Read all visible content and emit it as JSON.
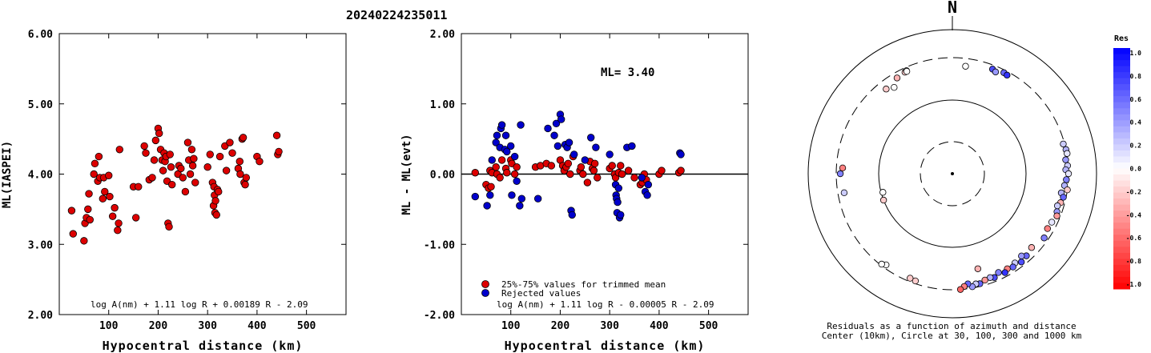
{
  "title": "20240224235011",
  "chart_data": [
    {
      "type": "scatter",
      "ylabel": "ML(IASPEI)",
      "xlabel": "Hypocentral distance (km)",
      "xlim": [
        0,
        580
      ],
      "ylim": [
        2.0,
        6.0
      ],
      "xticks": [
        "100",
        "200",
        "300",
        "400",
        "500"
      ],
      "yticks": [
        "2.00",
        "3.00",
        "4.00",
        "5.00",
        "6.00"
      ],
      "formula": "log A(nm) + 1.11 log R + 0.00189 R - 2.09",
      "marker_color": "#dd0000",
      "points": [
        [
          25,
          3.48
        ],
        [
          28,
          3.15
        ],
        [
          50,
          3.05
        ],
        [
          52,
          3.3
        ],
        [
          55,
          3.38
        ],
        [
          58,
          3.5
        ],
        [
          60,
          3.72
        ],
        [
          62,
          3.35
        ],
        [
          70,
          4.0
        ],
        [
          72,
          4.15
        ],
        [
          78,
          3.9
        ],
        [
          80,
          4.25
        ],
        [
          82,
          3.95
        ],
        [
          88,
          3.65
        ],
        [
          90,
          3.95
        ],
        [
          92,
          3.75
        ],
        [
          100,
          3.98
        ],
        [
          102,
          3.68
        ],
        [
          108,
          3.4
        ],
        [
          112,
          3.52
        ],
        [
          118,
          3.2
        ],
        [
          120,
          3.3
        ],
        [
          122,
          4.35
        ],
        [
          150,
          3.82
        ],
        [
          155,
          3.38
        ],
        [
          160,
          3.82
        ],
        [
          172,
          4.4
        ],
        [
          175,
          4.3
        ],
        [
          182,
          3.92
        ],
        [
          188,
          3.95
        ],
        [
          192,
          4.2
        ],
        [
          195,
          4.48
        ],
        [
          200,
          4.65
        ],
        [
          202,
          4.58
        ],
        [
          205,
          4.35
        ],
        [
          208,
          4.2
        ],
        [
          210,
          4.05
        ],
        [
          212,
          4.3
        ],
        [
          214,
          4.18
        ],
        [
          216,
          4.25
        ],
        [
          218,
          3.9
        ],
        [
          220,
          3.3
        ],
        [
          222,
          3.25
        ],
        [
          224,
          4.28
        ],
        [
          226,
          4.1
        ],
        [
          228,
          3.85
        ],
        [
          240,
          4.0
        ],
        [
          242,
          4.12
        ],
        [
          246,
          4.08
        ],
        [
          250,
          3.95
        ],
        [
          255,
          3.75
        ],
        [
          260,
          4.45
        ],
        [
          262,
          4.2
        ],
        [
          265,
          4.0
        ],
        [
          268,
          4.35
        ],
        [
          270,
          4.12
        ],
        [
          272,
          4.22
        ],
        [
          275,
          3.88
        ],
        [
          300,
          4.1
        ],
        [
          305,
          4.28
        ],
        [
          310,
          3.88
        ],
        [
          312,
          3.55
        ],
        [
          313,
          3.82
        ],
        [
          314,
          3.7
        ],
        [
          315,
          3.45
        ],
        [
          316,
          3.62
        ],
        [
          318,
          3.42
        ],
        [
          320,
          3.78
        ],
        [
          322,
          3.75
        ],
        [
          325,
          4.25
        ],
        [
          335,
          4.4
        ],
        [
          338,
          4.05
        ],
        [
          345,
          4.45
        ],
        [
          350,
          4.3
        ],
        [
          362,
          4.08
        ],
        [
          365,
          4.18
        ],
        [
          366,
          4.0
        ],
        [
          370,
          4.5
        ],
        [
          372,
          4.52
        ],
        [
          374,
          3.88
        ],
        [
          376,
          3.85
        ],
        [
          378,
          3.95
        ],
        [
          400,
          4.25
        ],
        [
          405,
          4.18
        ],
        [
          440,
          4.55
        ],
        [
          442,
          4.28
        ],
        [
          444,
          4.32
        ]
      ]
    },
    {
      "type": "scatter",
      "ylabel": "ML - ML(evt)",
      "xlabel": "Hypocentral distance (km)",
      "xlim": [
        0,
        580
      ],
      "ylim": [
        -2.0,
        2.0
      ],
      "xticks": [
        "100",
        "200",
        "300",
        "400",
        "500"
      ],
      "yticks": [
        "-2.00",
        "-1.00",
        "0.00",
        "1.00",
        "2.00"
      ],
      "annotation": "ML= 3.40",
      "formula": "log A(nm) + 1.11 log R - 0.00005 R - 2.09",
      "legend": [
        {
          "label": "25%-75% values for trimmed mean",
          "color": "#dd0000"
        },
        {
          "label": "Rejected values",
          "color": "#0000cc"
        }
      ],
      "accepted": [
        [
          28,
          0.02
        ],
        [
          50,
          -0.15
        ],
        [
          55,
          -0.2
        ],
        [
          58,
          0.05
        ],
        [
          60,
          -0.18
        ],
        [
          62,
          0.02
        ],
        [
          70,
          0.1
        ],
        [
          72,
          0.0
        ],
        [
          78,
          -0.05
        ],
        [
          82,
          0.2
        ],
        [
          90,
          0.08
        ],
        [
          92,
          0.02
        ],
        [
          100,
          0.2
        ],
        [
          102,
          0.15
        ],
        [
          108,
          0.0
        ],
        [
          112,
          0.1
        ],
        [
          150,
          0.1
        ],
        [
          160,
          0.12
        ],
        [
          172,
          0.15
        ],
        [
          182,
          0.12
        ],
        [
          200,
          0.2
        ],
        [
          205,
          0.12
        ],
        [
          208,
          0.05
        ],
        [
          212,
          0.1
        ],
        [
          216,
          0.15
        ],
        [
          220,
          0.0
        ],
        [
          226,
          0.25
        ],
        [
          240,
          0.05
        ],
        [
          242,
          0.1
        ],
        [
          246,
          0.0
        ],
        [
          255,
          -0.12
        ],
        [
          260,
          0.18
        ],
        [
          265,
          0.08
        ],
        [
          268,
          0.05
        ],
        [
          270,
          0.15
        ],
        [
          275,
          -0.05
        ],
        [
          300,
          0.08
        ],
        [
          305,
          0.12
        ],
        [
          310,
          0.0
        ],
        [
          312,
          -0.05
        ],
        [
          318,
          0.02
        ],
        [
          322,
          0.12
        ],
        [
          325,
          0.0
        ],
        [
          338,
          0.05
        ],
        [
          350,
          -0.05
        ],
        [
          362,
          -0.15
        ],
        [
          366,
          -0.12
        ],
        [
          370,
          0.0
        ],
        [
          374,
          -0.08
        ],
        [
          400,
          0.0
        ],
        [
          405,
          0.05
        ],
        [
          440,
          0.02
        ],
        [
          444,
          0.05
        ]
      ],
      "rejected": [
        [
          28,
          -0.32
        ],
        [
          52,
          -0.45
        ],
        [
          58,
          -0.3
        ],
        [
          62,
          0.2
        ],
        [
          70,
          0.45
        ],
        [
          72,
          0.55
        ],
        [
          78,
          0.38
        ],
        [
          80,
          0.65
        ],
        [
          82,
          0.7
        ],
        [
          88,
          0.35
        ],
        [
          90,
          0.55
        ],
        [
          92,
          0.32
        ],
        [
          100,
          0.4
        ],
        [
          102,
          -0.3
        ],
        [
          108,
          0.25
        ],
        [
          112,
          -0.1
        ],
        [
          118,
          -0.45
        ],
        [
          120,
          0.7
        ],
        [
          122,
          -0.35
        ],
        [
          155,
          -0.35
        ],
        [
          175,
          0.65
        ],
        [
          188,
          0.55
        ],
        [
          192,
          0.72
        ],
        [
          195,
          0.4
        ],
        [
          200,
          0.85
        ],
        [
          202,
          0.78
        ],
        [
          210,
          0.42
        ],
        [
          214,
          0.38
        ],
        [
          218,
          0.45
        ],
        [
          222,
          -0.52
        ],
        [
          224,
          -0.58
        ],
        [
          228,
          0.28
        ],
        [
          250,
          0.2
        ],
        [
          262,
          0.52
        ],
        [
          272,
          0.38
        ],
        [
          300,
          0.28
        ],
        [
          312,
          -0.15
        ],
        [
          313,
          -0.3
        ],
        [
          314,
          -0.35
        ],
        [
          315,
          -0.55
        ],
        [
          316,
          -0.4
        ],
        [
          318,
          -0.2
        ],
        [
          320,
          -0.62
        ],
        [
          322,
          -0.58
        ],
        [
          335,
          0.38
        ],
        [
          345,
          0.4
        ],
        [
          365,
          -0.05
        ],
        [
          372,
          -0.25
        ],
        [
          376,
          -0.3
        ],
        [
          378,
          -0.15
        ],
        [
          442,
          0.3
        ],
        [
          444,
          0.28
        ]
      ]
    },
    {
      "type": "scatter",
      "subtype": "polar",
      "north_label": "N",
      "caption_line1": "Residuals as a function of azimuth and distance",
      "caption_line2": "Center (10km), Circle at 30, 100, 300 and 1000 km",
      "colorbar_title": "Res",
      "colorbar_ticks": [
        "1.0",
        "0.8",
        "0.6",
        "0.4",
        "0.2",
        "0.0",
        "-0.2",
        "-0.4",
        "-0.6",
        "-0.8",
        "-1.0"
      ],
      "circle_distances_km": [
        30,
        100,
        300,
        1000
      ],
      "points": [
        {
          "az": 7,
          "dist": 245,
          "res": 0.0
        },
        {
          "az": 21,
          "dist": 270,
          "res": 0.7
        },
        {
          "az": 23,
          "dist": 260,
          "res": 0.4
        },
        {
          "az": 27,
          "dist": 280,
          "res": 0.6
        },
        {
          "az": 29,
          "dist": 275,
          "res": 0.8
        },
        {
          "az": 78,
          "dist": 300,
          "res": 0.3
        },
        {
          "az": 75,
          "dist": 290,
          "res": 0.2
        },
        {
          "az": 80,
          "dist": 305,
          "res": 0.1
        },
        {
          "az": 83,
          "dist": 285,
          "res": 0.4
        },
        {
          "az": 86,
          "dist": 295,
          "res": 0.2
        },
        {
          "az": 88,
          "dist": 280,
          "res": 0.3
        },
        {
          "az": 90,
          "dist": 300,
          "res": 0.1
        },
        {
          "az": 93,
          "dist": 285,
          "res": 0.5
        },
        {
          "az": 96,
          "dist": 275,
          "res": 0.3
        },
        {
          "az": 98,
          "dist": 300,
          "res": -0.2
        },
        {
          "az": 100,
          "dist": 260,
          "res": 0.3
        },
        {
          "az": 102,
          "dist": 280,
          "res": 0.6
        },
        {
          "az": 105,
          "dist": 270,
          "res": -0.3
        },
        {
          "az": 107,
          "dist": 255,
          "res": 0.2
        },
        {
          "az": 110,
          "dist": 265,
          "res": 0.4
        },
        {
          "az": 112,
          "dist": 275,
          "res": -0.4
        },
        {
          "az": 116,
          "dist": 260,
          "res": 0.1
        },
        {
          "az": 120,
          "dist": 255,
          "res": -0.5
        },
        {
          "az": 125,
          "dist": 270,
          "res": 0.5
        },
        {
          "az": 133,
          "dist": 245,
          "res": -0.3
        },
        {
          "az": 138,
          "dist": 260,
          "res": 0.6
        },
        {
          "az": 140,
          "dist": 240,
          "res": 0.4
        },
        {
          "az": 142,
          "dist": 270,
          "res": 0.7
        },
        {
          "az": 145,
          "dist": 250,
          "res": 0.2
        },
        {
          "az": 147,
          "dist": 265,
          "res": 0.6
        },
        {
          "az": 150,
          "dist": 255,
          "res": -0.5
        },
        {
          "az": 152,
          "dist": 270,
          "res": 0.8
        },
        {
          "az": 155,
          "dist": 250,
          "res": 0.5
        },
        {
          "az": 158,
          "dist": 270,
          "res": 0.7
        },
        {
          "az": 160,
          "dist": 260,
          "res": 0.3
        },
        {
          "az": 163,
          "dist": 265,
          "res": -0.4
        },
        {
          "az": 166,
          "dist": 280,
          "res": 0.6
        },
        {
          "az": 168,
          "dist": 275,
          "res": 0.2
        },
        {
          "az": 170,
          "dist": 290,
          "res": 0.4
        },
        {
          "az": 172,
          "dist": 265,
          "res": 0.6
        },
        {
          "az": 165,
          "dist": 190,
          "res": -0.3
        },
        {
          "az": 174,
          "dist": 280,
          "res": -0.5
        },
        {
          "az": 176,
          "dist": 300,
          "res": -0.6
        },
        {
          "az": 199,
          "dist": 280,
          "res": -0.2
        },
        {
          "az": 202,
          "dist": 275,
          "res": -0.2
        },
        {
          "az": 216,
          "dist": 275,
          "res": 0.0
        },
        {
          "az": 218,
          "dist": 290,
          "res": 0.0
        },
        {
          "az": 260,
          "dist": 255,
          "res": 0.2
        },
        {
          "az": 273,
          "dist": 255,
          "res": -0.5
        },
        {
          "az": 270,
          "dist": 270,
          "res": 0.5
        },
        {
          "az": 249,
          "dist": 100,
          "res": -0.2
        },
        {
          "az": 255,
          "dist": 95,
          "res": 0.0
        },
        {
          "az": 326,
          "dist": 220,
          "res": 0.0
        },
        {
          "az": 322,
          "dist": 240,
          "res": -0.2
        },
        {
          "az": 335,
          "dist": 270,
          "res": -0.2
        },
        {
          "az": 336,
          "dist": 275,
          "res": 0.0
        },
        {
          "az": 330,
          "dist": 260,
          "res": -0.3
        },
        {
          "az": 336,
          "dist": 270,
          "res": 0.0
        }
      ]
    }
  ]
}
